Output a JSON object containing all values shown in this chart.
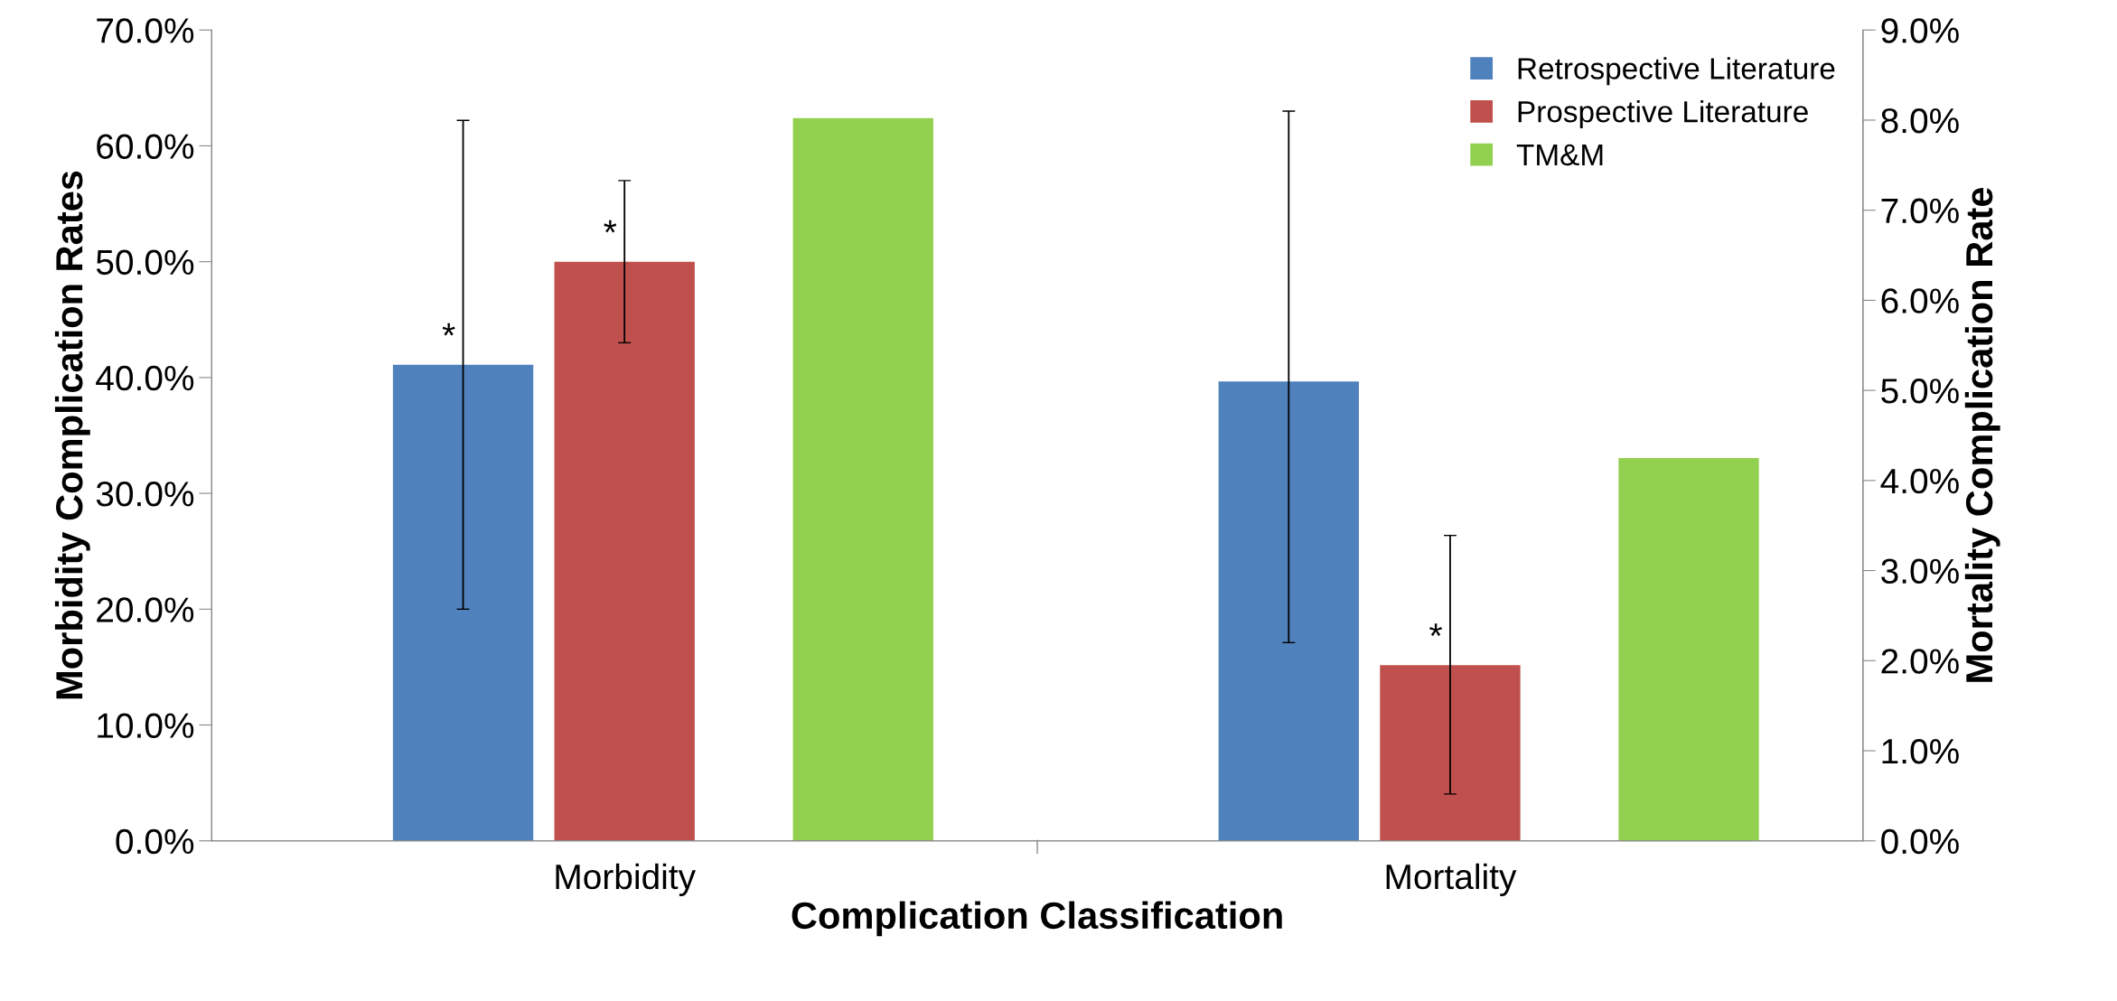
{
  "chart_data": {
    "type": "bar",
    "xlabel": "Complication Classification",
    "ylabel": "Morbidity Complication Rates",
    "y2label": "Mortality Complication Rate",
    "categories": [
      "Morbidity",
      "Mortality"
    ],
    "series": [
      {
        "name": "Retrospective Literature",
        "color": "#4f81bd",
        "values": [
          41.1,
          null
        ],
        "errors": [
          [
            20.0,
            62.2
          ],
          null
        ],
        "value_labels": [
          "*",
          null
        ]
      },
      {
        "name": "Prospective Literature",
        "color": "#c0504d",
        "values": [
          50.0,
          null
        ],
        "errors": [
          [
            43.0,
            57.0
          ],
          null
        ],
        "value_labels": [
          "*",
          null
        ]
      },
      {
        "name": "TM&M",
        "color": "#92d050",
        "values": [
          62.4,
          null
        ]
      },
      {
        "color": "#4f81bd",
        "axis": "y2",
        "values": [
          null,
          5.1
        ],
        "errors": [
          null,
          [
            2.2,
            8.1
          ]
        ]
      },
      {
        "color": "#c0504d",
        "axis": "y2",
        "values": [
          null,
          1.95
        ],
        "errors": [
          null,
          [
            0.52,
            3.39
          ]
        ],
        "value_labels": [
          null,
          "*"
        ]
      },
      {
        "color": "#92d050",
        "axis": "y2",
        "values": [
          null,
          4.25
        ]
      }
    ],
    "ylim": [
      0,
      70
    ],
    "yticks": [
      {
        "value": 0,
        "label": "0.0%"
      },
      {
        "value": 10,
        "label": "10.0%"
      },
      {
        "value": 20,
        "label": "20.0%"
      },
      {
        "value": 30,
        "label": "30.0%"
      },
      {
        "value": 40,
        "label": "40.0%"
      },
      {
        "value": 50,
        "label": "50.0%"
      },
      {
        "value": 60,
        "label": "60.0%"
      },
      {
        "value": 70,
        "label": "70.0%"
      }
    ],
    "y2lim": [
      0,
      9
    ],
    "y2ticks": [
      {
        "value": 0,
        "label": "0.0%"
      },
      {
        "value": 1,
        "label": "1.0%"
      },
      {
        "value": 2,
        "label": "2.0%"
      },
      {
        "value": 3,
        "label": "3.0%"
      },
      {
        "value": 4,
        "label": "4.0%"
      },
      {
        "value": 5,
        "label": "5.0%"
      },
      {
        "value": 6,
        "label": "6.0%"
      },
      {
        "value": 7,
        "label": "7.0%"
      },
      {
        "value": 8,
        "label": "8.0%"
      },
      {
        "value": 9,
        "label": "9.0%"
      }
    ],
    "grid": false,
    "legend": "top right"
  }
}
